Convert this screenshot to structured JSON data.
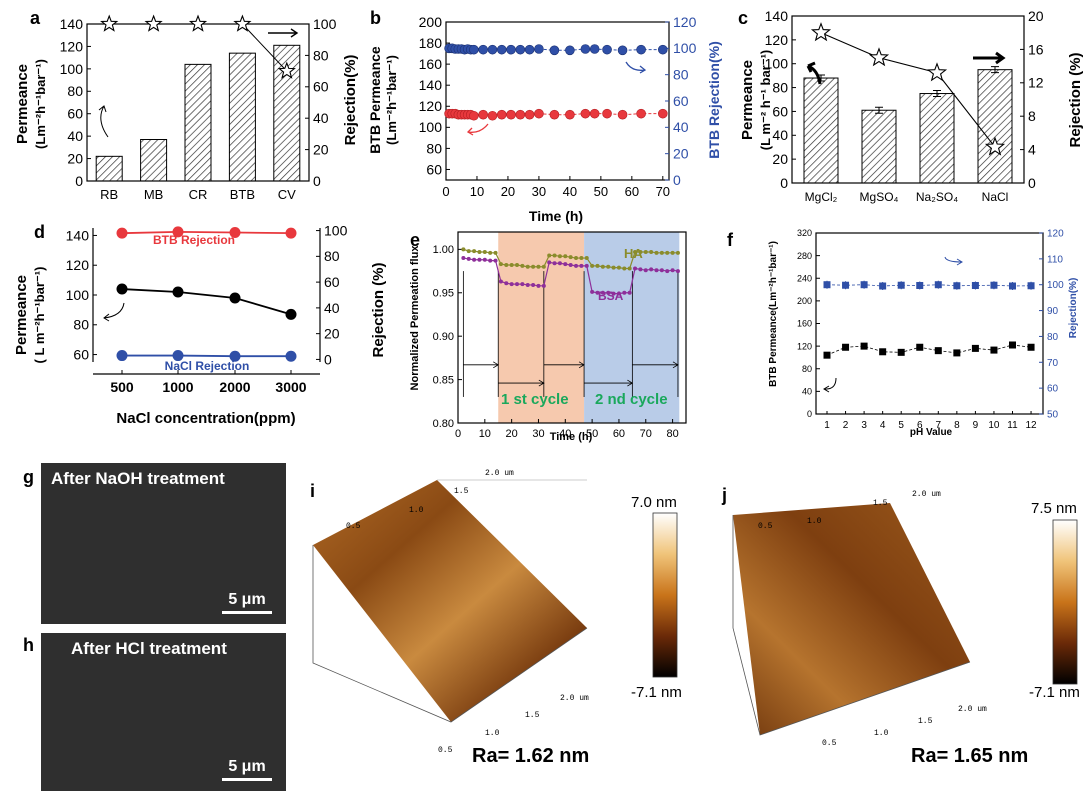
{
  "panels": {
    "a": {
      "letter": "a",
      "ylabel_left": "Permeance",
      "ylabel_left_unit": "(Lm⁻²h⁻¹bar⁻¹)",
      "ylabel_right": "Rejection(%)"
    },
    "b": {
      "letter": "b",
      "ylabel_left": "BTB Permeance",
      "ylabel_left_unit": "(Lm⁻²h⁻¹bar⁻¹)",
      "ylabel_right": "BTB Rejection(%)",
      "xlabel": "Time (h)"
    },
    "c": {
      "letter": "c",
      "ylabel_left": "Permeance",
      "ylabel_left_unit": "(L m⁻² h⁻¹ bar⁻¹)",
      "ylabel_right": "Rejection (%)"
    },
    "d": {
      "letter": "d",
      "ylabel_left": "Permeance",
      "ylabel_left_unit": "( L m⁻²h⁻¹bar⁻¹)",
      "ylabel_right": "Rejection (%)",
      "xlabel": "NaCl concentration(ppm)",
      "label_btb": "BTB Rejection",
      "label_nacl": "NaCl Rejection"
    },
    "e": {
      "letter": "e",
      "ylabel": "Normalized Permeation flux",
      "xlabel": "Time (h)",
      "label_ha": "HA",
      "label_bsa": "BSA",
      "cycle1": "1 st cycle",
      "cycle2": "2 nd cycle"
    },
    "f": {
      "letter": "f",
      "ylabel_left": "BTB Permeance(Lm⁻²h⁻¹bar⁻¹)",
      "ylabel_right": "Rejection(%)",
      "xlabel": "pH Value"
    },
    "g": {
      "letter": "g",
      "title": "After NaOH treatment",
      "scale": "5 μm"
    },
    "h": {
      "letter": "h",
      "title": "After HCl treatment",
      "scale": "5 μm"
    },
    "i": {
      "letter": "i",
      "max": "7.0 nm",
      "min": "-7.1 nm",
      "ra": "Ra= 1.62 nm",
      "ticks": [
        "0.5",
        "1.0",
        "1.5",
        "2.0 um",
        "0.5",
        "1.0",
        "1.5",
        "2.0 um"
      ]
    },
    "j": {
      "letter": "j",
      "max": "7.5 nm",
      "min": "-7.1 nm",
      "ra": "Ra= 1.65 nm",
      "ticks": [
        "0.5",
        "1.0",
        "1.5",
        "2.0 um",
        "0.5",
        "1.0",
        "1.5",
        "2.0 um"
      ]
    }
  },
  "chart_data": [
    {
      "id": "a",
      "type": "bar",
      "categories": [
        "RB",
        "MB",
        "CR",
        "BTB",
        "CV"
      ],
      "series": [
        {
          "name": "Permeance",
          "axis": "left",
          "values": [
            22,
            37,
            104,
            114,
            121
          ]
        },
        {
          "name": "Rejection",
          "axis": "right",
          "marker": "star",
          "values": [
            100,
            100,
            100,
            100,
            70
          ]
        }
      ],
      "ylim": [
        0,
        140
      ],
      "yticks": [
        0,
        20,
        40,
        60,
        80,
        100,
        120,
        140
      ],
      "y2lim": [
        0,
        100
      ],
      "y2ticks": [
        0,
        20,
        40,
        60,
        80,
        100
      ]
    },
    {
      "id": "b",
      "type": "scatter",
      "xlim": [
        0,
        72
      ],
      "xticks": [
        0,
        10,
        20,
        30,
        40,
        50,
        60,
        70
      ],
      "ylim": [
        50,
        200
      ],
      "yticks": [
        60,
        80,
        100,
        120,
        140,
        160,
        180,
        200
      ],
      "y2lim": [
        0,
        120
      ],
      "y2ticks": [
        0,
        20,
        40,
        60,
        80,
        100,
        120
      ],
      "series": [
        {
          "name": "BTB Permeance",
          "axis": "left",
          "color": "#e8383d",
          "x": [
            1,
            2,
            3,
            4,
            5,
            6,
            7,
            8,
            9,
            12,
            15,
            18,
            21,
            24,
            27,
            30,
            35,
            40,
            45,
            48,
            52,
            57,
            63,
            70
          ],
          "y": [
            113,
            113,
            113,
            112,
            112,
            112,
            112,
            112,
            111,
            112,
            111,
            112,
            112,
            112,
            112,
            113,
            112,
            112,
            113,
            113,
            113,
            112,
            113,
            113
          ]
        },
        {
          "name": "BTB Rejection",
          "axis": "right",
          "color": "#2f4fa7",
          "x": [
            1,
            2,
            3,
            4,
            5,
            6,
            7,
            8,
            9,
            12,
            15,
            18,
            21,
            24,
            27,
            30,
            35,
            40,
            45,
            48,
            52,
            57,
            63,
            70
          ],
          "y": [
            100,
            100,
            99.5,
            99.5,
            99.5,
            99,
            99.5,
            99,
            99,
            99,
            99,
            99,
            99,
            99,
            99,
            99.5,
            98.5,
            98.5,
            99.5,
            99.5,
            99,
            98.5,
            99,
            99
          ]
        }
      ]
    },
    {
      "id": "c",
      "type": "bar",
      "categories": [
        "MgCl₂",
        "MgSO₄",
        "Na₂SO₄",
        "NaCl"
      ],
      "series": [
        {
          "name": "Permeance",
          "axis": "left",
          "values": [
            88,
            61,
            75,
            95
          ]
        },
        {
          "name": "Rejection",
          "axis": "right",
          "marker": "star",
          "values": [
            18,
            15,
            13.2,
            4.3
          ]
        }
      ],
      "ylim": [
        0,
        140
      ],
      "yticks": [
        0,
        20,
        40,
        60,
        80,
        100,
        120,
        140
      ],
      "y2lim": [
        0,
        20
      ],
      "y2ticks": [
        0,
        4,
        8,
        12,
        16,
        20
      ]
    },
    {
      "id": "d",
      "type": "line",
      "categories": [
        "500",
        "1000",
        "2000",
        "3000"
      ],
      "ylim": [
        55,
        145
      ],
      "yticks": [
        60,
        80,
        100,
        120,
        140
      ],
      "y2lim": [
        -2,
        102
      ],
      "y2ticks": [
        0,
        20,
        40,
        60,
        80,
        100
      ],
      "series": [
        {
          "name": "Permeance",
          "axis": "left",
          "color": "#000000",
          "values": [
            104,
            102,
            98,
            87
          ]
        },
        {
          "name": "BTB Rejection",
          "axis": "right",
          "color": "#e8383d",
          "values": [
            98,
            99,
            98.5,
            98
          ]
        },
        {
          "name": "NaCl Rejection",
          "axis": "right",
          "color": "#2f4fa7",
          "values": [
            3,
            3,
            2.5,
            2.5
          ]
        }
      ]
    },
    {
      "id": "e",
      "type": "line",
      "xlim": [
        0,
        85
      ],
      "xticks": [
        0,
        10,
        20,
        30,
        40,
        50,
        60,
        70,
        80
      ],
      "ylim": [
        0.8,
        1.02
      ],
      "yticks": [
        0.8,
        0.85,
        0.9,
        0.95,
        1.0
      ],
      "series": [
        {
          "name": "HA",
          "color": "#8a8c2c",
          "x": [
            2,
            4,
            6,
            8,
            10,
            12,
            14,
            16,
            18,
            20,
            22,
            24,
            26,
            28,
            30,
            32,
            34,
            36,
            38,
            40,
            42,
            44,
            46,
            48,
            50,
            52,
            54,
            56,
            58,
            60,
            62,
            64,
            66,
            68,
            70,
            72,
            74,
            76,
            78,
            80,
            82
          ],
          "y": [
            1.0,
            0.998,
            0.998,
            0.997,
            0.997,
            0.996,
            0.996,
            0.983,
            0.982,
            0.982,
            0.982,
            0.981,
            0.98,
            0.98,
            0.98,
            0.98,
            0.993,
            0.993,
            0.992,
            0.992,
            0.991,
            0.99,
            0.99,
            0.99,
            0.981,
            0.981,
            0.98,
            0.98,
            0.979,
            0.979,
            0.978,
            0.978,
            0.997,
            0.997,
            0.997,
            0.997,
            0.996,
            0.996,
            0.996,
            0.996,
            0.996
          ]
        },
        {
          "name": "BSA",
          "color": "#8e2f9a",
          "x": [
            2,
            4,
            6,
            8,
            10,
            12,
            14,
            16,
            18,
            20,
            22,
            24,
            26,
            28,
            30,
            32,
            34,
            36,
            38,
            40,
            42,
            44,
            46,
            48,
            50,
            52,
            54,
            56,
            58,
            60,
            62,
            64,
            66,
            68,
            70,
            72,
            74,
            76,
            78,
            80,
            82
          ],
          "y": [
            0.99,
            0.989,
            0.988,
            0.988,
            0.988,
            0.987,
            0.987,
            0.963,
            0.961,
            0.96,
            0.96,
            0.96,
            0.959,
            0.959,
            0.958,
            0.958,
            0.985,
            0.984,
            0.984,
            0.983,
            0.982,
            0.981,
            0.981,
            0.981,
            0.951,
            0.95,
            0.95,
            0.95,
            0.949,
            0.949,
            0.95,
            0.95,
            0.978,
            0.977,
            0.976,
            0.977,
            0.976,
            0.976,
            0.975,
            0.976,
            0.975
          ]
        }
      ]
    },
    {
      "id": "f",
      "type": "scatter",
      "categories": [
        "1",
        "2",
        "3",
        "4",
        "5",
        "6",
        "7",
        "8",
        "9",
        "10",
        "11",
        "12"
      ],
      "ylim": [
        0,
        320
      ],
      "yticks": [
        0,
        40,
        80,
        120,
        160,
        200,
        240,
        280,
        320
      ],
      "y2lim": [
        50,
        120
      ],
      "y2ticks": [
        50,
        60,
        70,
        80,
        90,
        100,
        110,
        120
      ],
      "series": [
        {
          "name": "BTB Permeance",
          "axis": "left",
          "color": "#000000",
          "values": [
            104,
            118,
            120,
            110,
            109,
            118,
            112,
            108,
            116,
            113,
            122,
            118
          ]
        },
        {
          "name": "Rejection",
          "axis": "right",
          "color": "#2f4fa7",
          "values": [
            100,
            99.8,
            100,
            99.5,
            99.8,
            99.7,
            100,
            99.6,
            99.7,
            99.8,
            99.5,
            99.6
          ]
        }
      ]
    }
  ]
}
